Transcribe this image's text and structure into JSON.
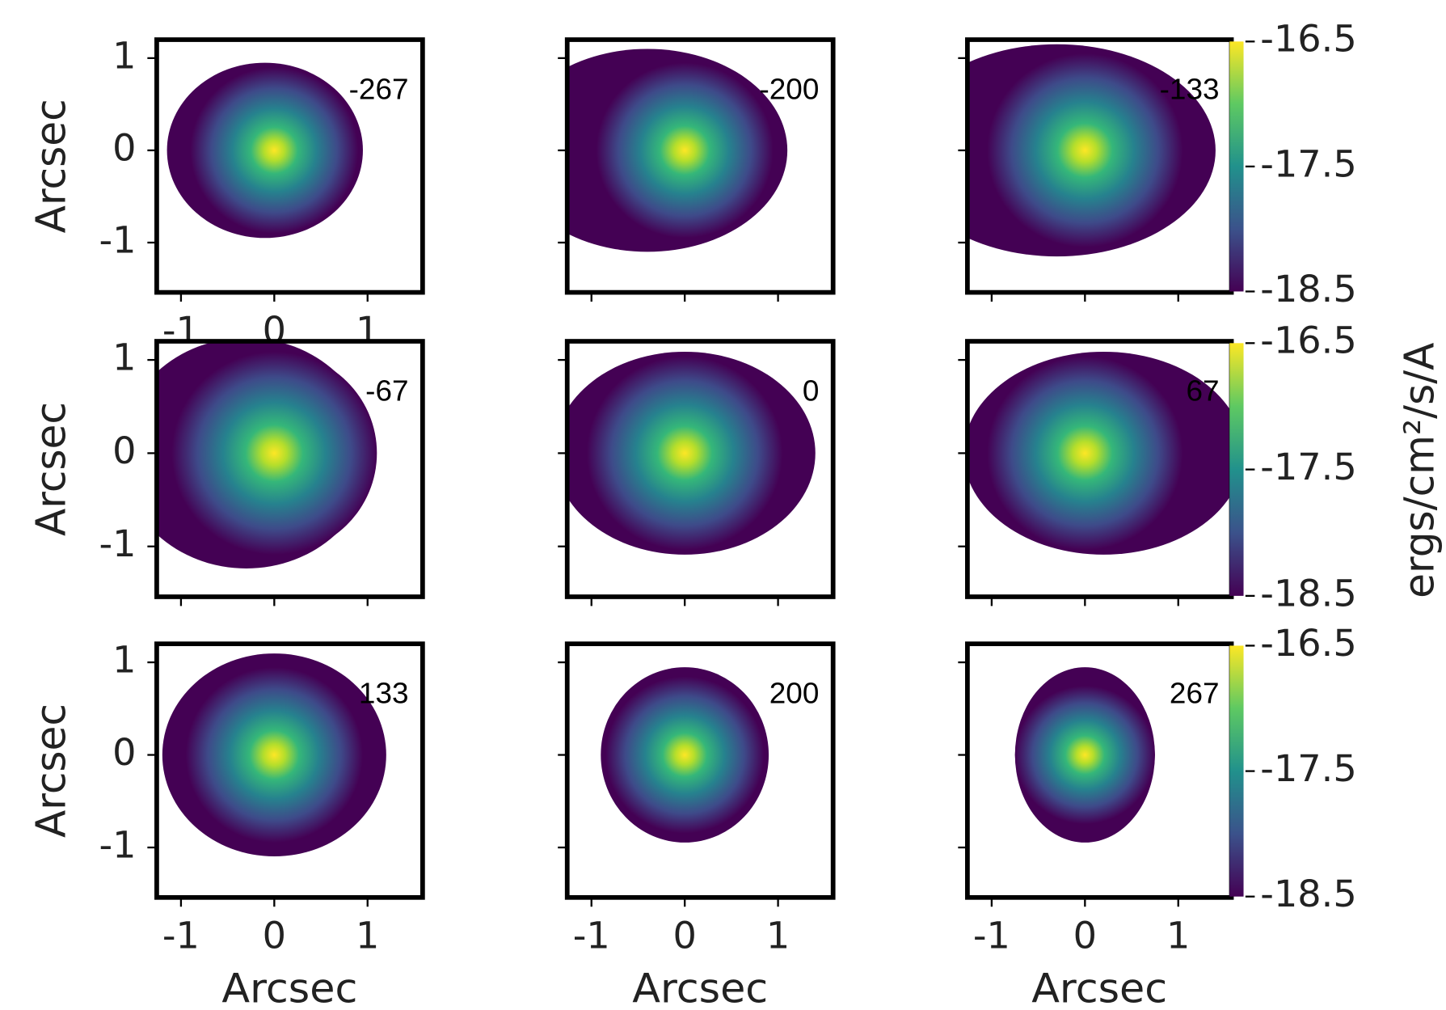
{
  "chart_data": [
    {
      "type": "image",
      "label": "-267",
      "ylabel": "Arcsec",
      "xlim": [
        -1.26,
        1.59
      ],
      "ylim": [
        -1.54,
        1.2
      ],
      "xticks": [
        -1,
        0,
        1
      ],
      "yticks": [
        -1,
        0,
        1
      ]
    },
    {
      "type": "image",
      "label": "-200",
      "xlim": [
        -1.26,
        1.59
      ],
      "ylim": [
        -1.54,
        1.2
      ],
      "xticks": [
        -1,
        0,
        1
      ],
      "yticks": [
        -1,
        0,
        1
      ]
    },
    {
      "type": "image",
      "label": "-133",
      "xlim": [
        -1.26,
        1.57
      ],
      "ylim": [
        -1.54,
        1.2
      ],
      "xticks": [
        -1,
        0,
        1
      ],
      "yticks": [
        -1,
        0,
        1
      ],
      "colorbar": {
        "lim": [
          -18.5,
          -16.5
        ],
        "ticks": [
          -16.5,
          -17.5,
          -18.5
        ]
      }
    },
    {
      "type": "image",
      "label": "-67",
      "ylabel": "Arcsec",
      "xlim": [
        -1.26,
        1.59
      ],
      "ylim": [
        -1.54,
        1.2
      ],
      "xticks": [
        -1,
        0,
        1
      ],
      "yticks": [
        -1,
        0,
        1
      ]
    },
    {
      "type": "image",
      "label": "0",
      "xlim": [
        -1.26,
        1.59
      ],
      "ylim": [
        -1.54,
        1.2
      ],
      "xticks": [
        -1,
        0,
        1
      ],
      "yticks": [
        -1,
        0,
        1
      ]
    },
    {
      "type": "image",
      "label": "67",
      "xlim": [
        -1.26,
        1.57
      ],
      "ylim": [
        -1.54,
        1.2
      ],
      "xticks": [
        -1,
        0,
        1
      ],
      "yticks": [
        -1,
        0,
        1
      ],
      "colorbar": {
        "lim": [
          -18.5,
          -16.5
        ],
        "ticks": [
          -16.5,
          -17.5,
          -18.5
        ]
      }
    },
    {
      "type": "image",
      "label": "133",
      "ylabel": "Arcsec",
      "xlabel": "Arcsec",
      "xlim": [
        -1.26,
        1.59
      ],
      "ylim": [
        -1.54,
        1.2
      ],
      "xticks": [
        -1,
        0,
        1
      ],
      "yticks": [
        -1,
        0,
        1
      ]
    },
    {
      "type": "image",
      "label": "200",
      "xlabel": "Arcsec",
      "xlim": [
        -1.26,
        1.59
      ],
      "ylim": [
        -1.54,
        1.2
      ],
      "xticks": [
        -1,
        0,
        1
      ],
      "yticks": [
        -1,
        0,
        1
      ]
    },
    {
      "type": "image",
      "label": "267",
      "xlabel": "Arcsec",
      "xlim": [
        -1.26,
        1.57
      ],
      "ylim": [
        -1.54,
        1.2
      ],
      "xticks": [
        -1,
        0,
        1
      ],
      "yticks": [
        -1,
        0,
        1
      ],
      "colorbar": {
        "lim": [
          -18.5,
          -16.5
        ],
        "ticks": [
          -16.5,
          -17.5,
          -18.5
        ]
      }
    }
  ],
  "colorbar_label": "ergs/cm²/s/A"
}
